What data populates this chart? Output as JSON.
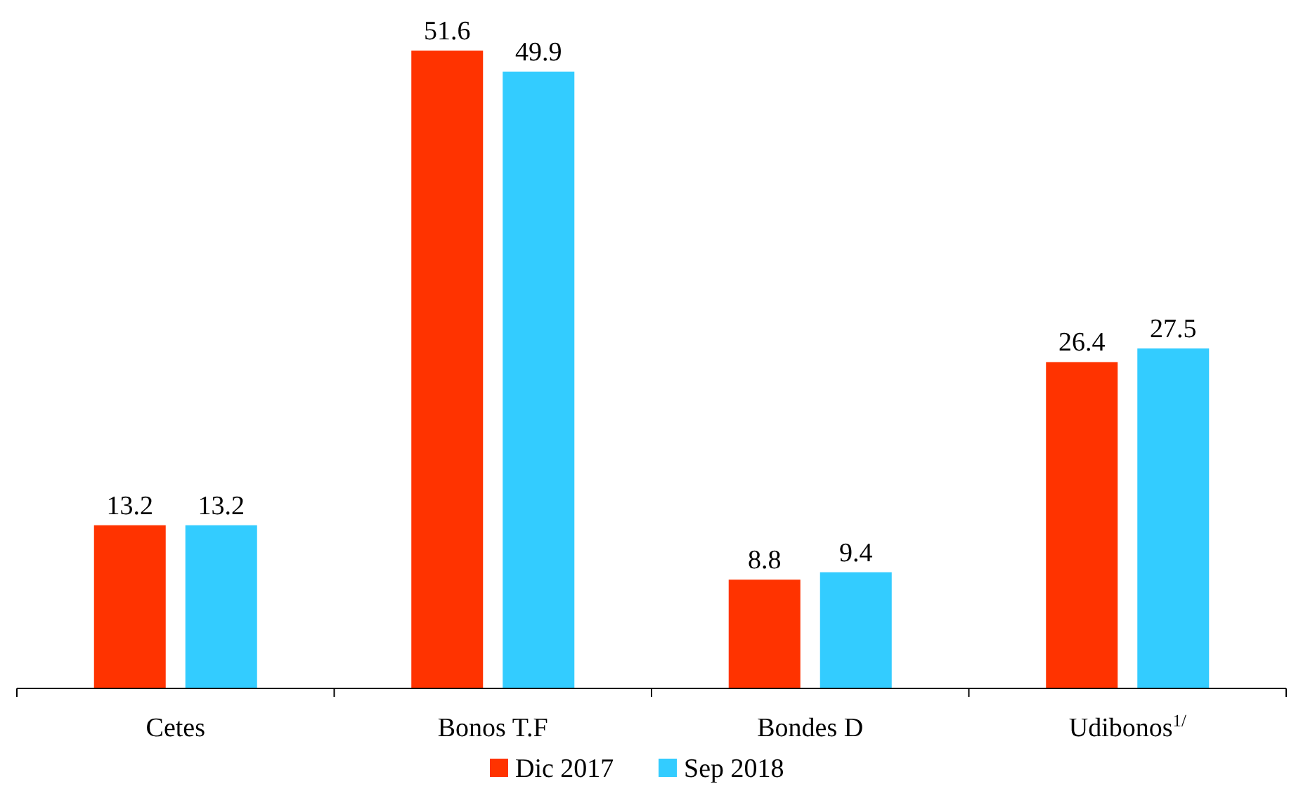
{
  "chart_data": {
    "type": "bar",
    "categories": [
      "Cetes",
      "Bonos T.F",
      "Bondes D",
      "Udibonos$^{1/}$"
    ],
    "series": [
      {
        "name": "Dic 2017",
        "color": "#ff3300",
        "values": [
          13.2,
          51.6,
          8.8,
          26.4
        ]
      },
      {
        "name": "Sep 2018",
        "color": "#33ccff",
        "values": [
          13.2,
          49.9,
          9.4,
          27.5
        ]
      }
    ],
    "data_labels": true,
    "legend": "bottom"
  }
}
